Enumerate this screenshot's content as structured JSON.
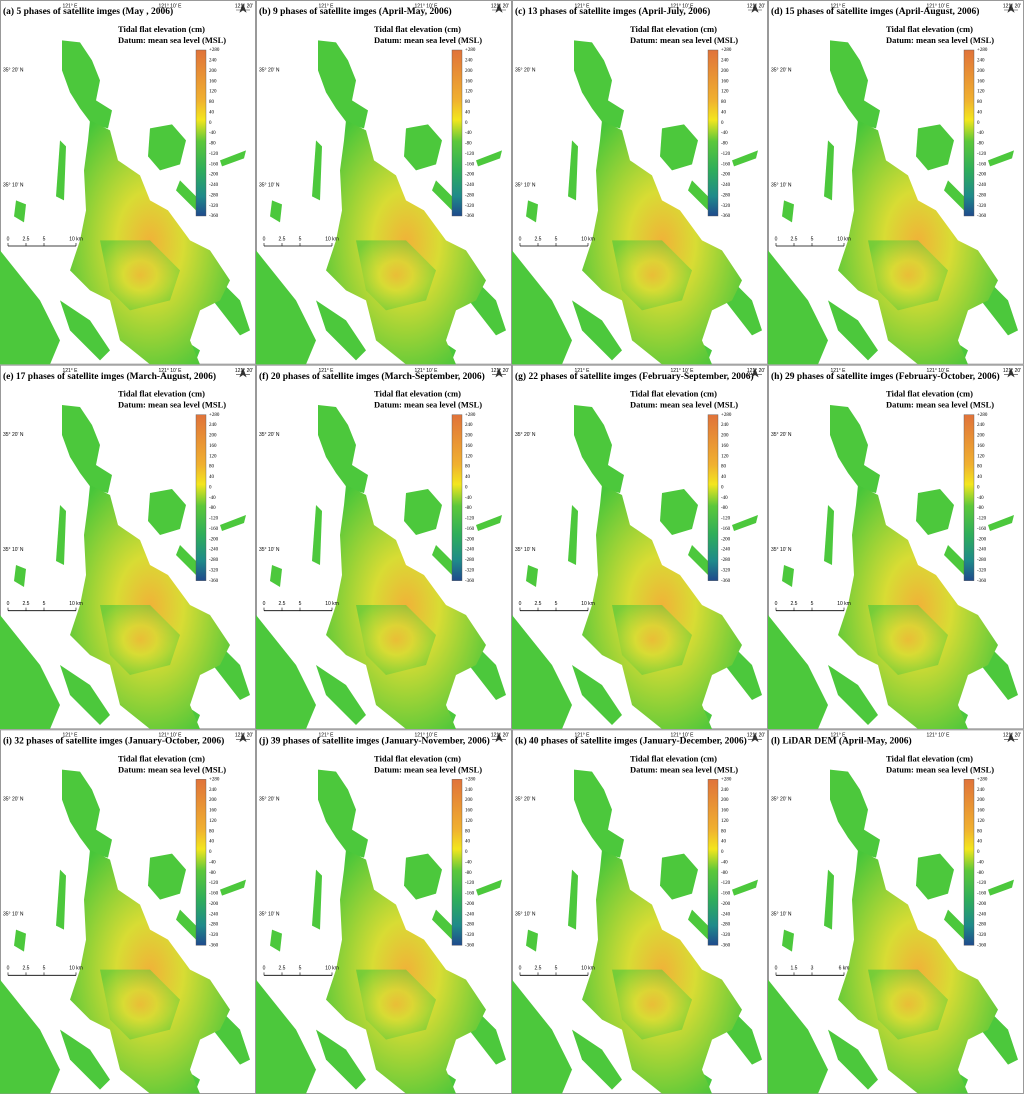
{
  "panels": [
    {
      "title": "(a) 5 phases of satellite imges (May , 2006)",
      "scale": [
        "0",
        "2.5",
        "5",
        "10 km"
      ]
    },
    {
      "title": "(b) 9 phases of satellite imges (April-May, 2006)",
      "scale": [
        "0",
        "2.5",
        "5",
        "10 km"
      ]
    },
    {
      "title": "(c) 13 phases of satellite imges (April-July, 2006)",
      "scale": [
        "0",
        "2.5",
        "5",
        "10 km"
      ]
    },
    {
      "title": "(d) 15 phases of satellite imges (April-August, 2006)",
      "scale": [
        "0",
        "2.5",
        "5",
        "10 km"
      ]
    },
    {
      "title": "(e) 17 phases of satellite imges (March-August, 2006)",
      "scale": [
        "0",
        "2.5",
        "5",
        "10 km"
      ]
    },
    {
      "title": "(f) 20 phases of satellite imges (March-September, 2006)",
      "scale": [
        "0",
        "2.5",
        "5",
        "10 km"
      ]
    },
    {
      "title": "(g) 22 phases of satellite imges (February-September, 2006)",
      "scale": [
        "0",
        "2.5",
        "5",
        "10 km"
      ]
    },
    {
      "title": "(h) 29 phases of satellite imges (February-October, 2006)",
      "scale": [
        "0",
        "2.5",
        "5",
        "10 km"
      ]
    },
    {
      "title": "(i) 32 phases of satellite imges (January-October, 2006)",
      "scale": [
        "0",
        "2.5",
        "5",
        "10 km"
      ]
    },
    {
      "title": "(j) 39 phases of satellite imges (January-November, 2006)",
      "scale": [
        "0",
        "2.5",
        "5",
        "10 km"
      ]
    },
    {
      "title": "(k) 40 phases of satellite imges (January-December, 2006)",
      "scale": [
        "0",
        "2.5",
        "5",
        "10 km"
      ]
    },
    {
      "title": "(l) LiDAR DEM (April-May, 2006)",
      "scale": [
        "0",
        "1.5",
        "3",
        "6 km"
      ]
    }
  ],
  "legend": {
    "title": "Tidal flat elevation (cm)",
    "datum": "Datum: mean sea level (MSL)",
    "ticks": [
      "+280",
      "240",
      "200",
      "160",
      "120",
      "80",
      "40",
      "0",
      "-40",
      "-80",
      "-120",
      "-160",
      "-200",
      "-240",
      "-280",
      "-320",
      "-360"
    ]
  },
  "coords": {
    "top": [
      "121° E",
      "121° 10' E",
      "121° 20'"
    ],
    "left": [
      "35° 20' N",
      "35° 10' N"
    ]
  }
}
